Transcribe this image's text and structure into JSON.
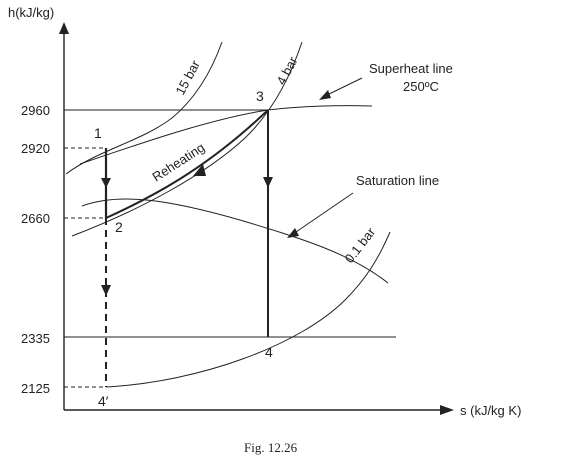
{
  "axes": {
    "y_label": "h(kJ/kg)",
    "x_label": "s (kJ/kg K)",
    "y_ticks": [
      "2960",
      "2920",
      "2660",
      "2335",
      "2125"
    ]
  },
  "curves": {
    "p15": "15 bar",
    "p4": "4 bar",
    "p01": "0.1 bar",
    "superheat": "Superheat line",
    "superheat_temp": "250ºC",
    "saturation": "Saturation line",
    "reheating": "Reheating"
  },
  "points": {
    "p1": "1",
    "p2": "2",
    "p3": "3",
    "p4": "4",
    "p4prime": "4′"
  },
  "caption": "Fig. 12.26"
}
